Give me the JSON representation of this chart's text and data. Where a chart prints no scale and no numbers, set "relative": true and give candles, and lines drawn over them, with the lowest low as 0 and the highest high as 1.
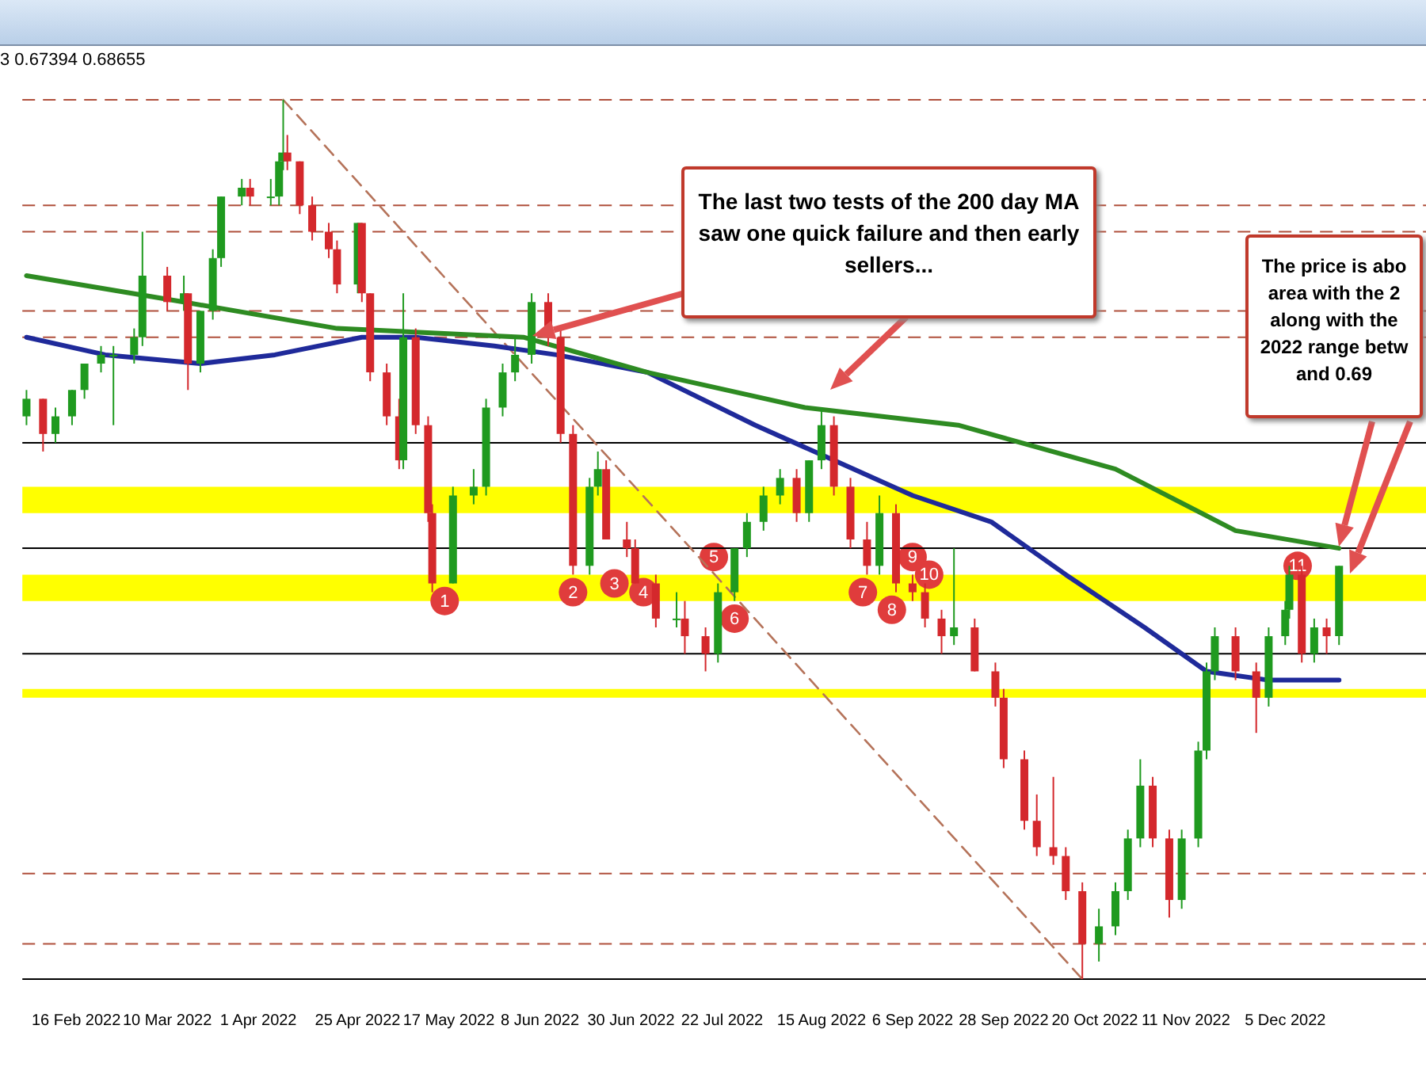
{
  "chart_data": {
    "type": "candlestick",
    "relative": true,
    "legend": false,
    "grid": false,
    "marker": "none",
    "tick_labels": "x",
    "x": [
      "2022-02-04",
      "2022-02-08",
      "2022-02-11",
      "2022-02-15",
      "2022-02-18",
      "2022-02-22",
      "2022-02-25",
      "2022-03-02",
      "2022-03-04",
      "2022-03-10",
      "2022-03-14",
      "2022-03-15",
      "2022-03-18",
      "2022-03-21",
      "2022-03-23",
      "2022-03-28",
      "2022-03-30",
      "2022-04-04",
      "2022-04-06",
      "2022-04-07",
      "2022-04-08",
      "2022-04-11",
      "2022-04-14",
      "2022-04-18",
      "2022-04-20",
      "2022-04-25",
      "2022-04-26",
      "2022-04-28",
      "2022-05-02",
      "2022-05-05",
      "2022-05-06",
      "2022-05-09",
      "2022-05-12",
      "2022-05-13",
      "2022-05-18",
      "2022-05-23",
      "2022-05-26",
      "2022-05-30",
      "2022-06-02",
      "2022-06-06",
      "2022-06-10",
      "2022-06-13",
      "2022-06-16",
      "2022-06-20",
      "2022-06-22",
      "2022-06-24",
      "2022-06-29",
      "2022-07-01",
      "2022-07-06",
      "2022-07-11",
      "2022-07-13",
      "2022-07-18",
      "2022-07-21",
      "2022-07-25",
      "2022-07-28",
      "2022-08-01",
      "2022-08-05",
      "2022-08-09",
      "2022-08-12",
      "2022-08-15",
      "2022-08-18",
      "2022-08-22",
      "2022-08-26",
      "2022-08-29",
      "2022-09-02",
      "2022-09-06",
      "2022-09-09",
      "2022-09-13",
      "2022-09-16",
      "2022-09-21",
      "2022-09-26",
      "2022-09-28",
      "2022-10-03",
      "2022-10-06",
      "2022-10-10",
      "2022-10-13",
      "2022-10-17",
      "2022-10-21",
      "2022-10-25",
      "2022-10-28",
      "2022-10-31",
      "2022-11-03",
      "2022-11-07",
      "2022-11-10",
      "2022-11-14",
      "2022-11-16",
      "2022-11-18",
      "2022-11-23",
      "2022-11-28",
      "2022-12-01",
      "2022-12-05",
      "2022-12-06",
      "2022-12-09",
      "2022-12-12",
      "2022-12-15",
      "2022-12-18"
    ],
    "ohlc": [
      [
        0.64,
        0.67,
        0.63,
        0.66
      ],
      [
        0.66,
        0.66,
        0.6,
        0.62
      ],
      [
        0.62,
        0.65,
        0.61,
        0.64
      ],
      [
        0.64,
        0.67,
        0.63,
        0.67
      ],
      [
        0.67,
        0.7,
        0.66,
        0.7
      ],
      [
        0.7,
        0.72,
        0.69,
        0.71
      ],
      [
        0.71,
        0.72,
        0.63,
        0.71
      ],
      [
        0.71,
        0.74,
        0.7,
        0.73
      ],
      [
        0.73,
        0.85,
        0.72,
        0.8
      ],
      [
        0.8,
        0.81,
        0.76,
        0.77
      ],
      [
        0.77,
        0.8,
        0.76,
        0.78
      ],
      [
        0.78,
        0.78,
        0.67,
        0.7
      ],
      [
        0.7,
        0.76,
        0.69,
        0.76
      ],
      [
        0.76,
        0.83,
        0.75,
        0.82
      ],
      [
        0.82,
        0.89,
        0.81,
        0.89
      ],
      [
        0.89,
        0.91,
        0.88,
        0.9
      ],
      [
        0.9,
        0.91,
        0.88,
        0.89
      ],
      [
        0.89,
        0.91,
        0.88,
        0.89
      ],
      [
        0.89,
        0.94,
        0.88,
        0.93
      ],
      [
        0.93,
        1,
        0.92,
        0.94
      ],
      [
        0.94,
        0.96,
        0.92,
        0.93
      ],
      [
        0.93,
        0.93,
        0.87,
        0.88
      ],
      [
        0.88,
        0.89,
        0.84,
        0.85
      ],
      [
        0.85,
        0.86,
        0.82,
        0.83
      ],
      [
        0.83,
        0.84,
        0.78,
        0.79
      ],
      [
        0.79,
        0.86,
        0.78,
        0.86
      ],
      [
        0.86,
        0.86,
        0.77,
        0.78
      ],
      [
        0.78,
        0.78,
        0.68,
        0.69
      ],
      [
        0.69,
        0.7,
        0.63,
        0.64
      ],
      [
        0.64,
        0.66,
        0.58,
        0.59
      ],
      [
        0.59,
        0.78,
        0.58,
        0.73
      ],
      [
        0.73,
        0.74,
        0.62,
        0.63
      ],
      [
        0.63,
        0.64,
        0.52,
        0.53
      ],
      [
        0.53,
        0.54,
        0.44,
        0.45
      ],
      [
        0.45,
        0.56,
        0.45,
        0.55
      ],
      [
        0.55,
        0.58,
        0.54,
        0.56
      ],
      [
        0.56,
        0.66,
        0.55,
        0.65
      ],
      [
        0.65,
        0.7,
        0.64,
        0.69
      ],
      [
        0.69,
        0.73,
        0.68,
        0.71
      ],
      [
        0.71,
        0.78,
        0.7,
        0.77
      ],
      [
        0.77,
        0.78,
        0.72,
        0.73
      ],
      [
        0.73,
        0.74,
        0.61,
        0.62
      ],
      [
        0.62,
        0.63,
        0.46,
        0.47
      ],
      [
        0.47,
        0.57,
        0.46,
        0.56
      ],
      [
        0.56,
        0.6,
        0.55,
        0.58
      ],
      [
        0.58,
        0.59,
        0.5,
        0.5
      ],
      [
        0.5,
        0.52,
        0.48,
        0.49
      ],
      [
        0.49,
        0.5,
        0.45,
        0.45
      ],
      [
        0.45,
        0.46,
        0.4,
        0.41
      ],
      [
        0.41,
        0.44,
        0.4,
        0.41
      ],
      [
        0.41,
        0.43,
        0.37,
        0.39
      ],
      [
        0.39,
        0.4,
        0.35,
        0.37
      ],
      [
        0.37,
        0.45,
        0.36,
        0.44
      ],
      [
        0.44,
        0.49,
        0.43,
        0.49
      ],
      [
        0.49,
        0.53,
        0.48,
        0.52
      ],
      [
        0.52,
        0.56,
        0.51,
        0.55
      ],
      [
        0.55,
        0.58,
        0.54,
        0.57
      ],
      [
        0.57,
        0.58,
        0.52,
        0.53
      ],
      [
        0.53,
        0.59,
        0.52,
        0.59
      ],
      [
        0.59,
        0.65,
        0.58,
        0.63
      ],
      [
        0.63,
        0.64,
        0.55,
        0.56
      ],
      [
        0.56,
        0.57,
        0.49,
        0.5
      ],
      [
        0.5,
        0.52,
        0.46,
        0.47
      ],
      [
        0.47,
        0.55,
        0.46,
        0.53
      ],
      [
        0.53,
        0.54,
        0.44,
        0.45
      ],
      [
        0.45,
        0.46,
        0.43,
        0.44
      ],
      [
        0.44,
        0.45,
        0.4,
        0.41
      ],
      [
        0.41,
        0.42,
        0.37,
        0.39
      ],
      [
        0.39,
        0.49,
        0.38,
        0.4
      ],
      [
        0.4,
        0.41,
        0.35,
        0.35
      ],
      [
        0.35,
        0.36,
        0.31,
        0.32
      ],
      [
        0.32,
        0.33,
        0.24,
        0.25
      ],
      [
        0.25,
        0.26,
        0.17,
        0.18
      ],
      [
        0.18,
        0.21,
        0.14,
        0.15
      ],
      [
        0.15,
        0.23,
        0.13,
        0.14
      ],
      [
        0.14,
        0.15,
        0.09,
        0.1
      ],
      [
        0.1,
        0.11,
        0,
        0.04
      ],
      [
        0.04,
        0.08,
        0.02,
        0.06
      ],
      [
        0.06,
        0.11,
        0.05,
        0.1
      ],
      [
        0.1,
        0.17,
        0.09,
        0.16
      ],
      [
        0.16,
        0.25,
        0.15,
        0.22
      ],
      [
        0.22,
        0.23,
        0.15,
        0.16
      ],
      [
        0.16,
        0.17,
        0.07,
        0.09
      ],
      [
        0.09,
        0.17,
        0.08,
        0.16
      ],
      [
        0.16,
        0.27,
        0.15,
        0.26
      ],
      [
        0.26,
        0.36,
        0.25,
        0.35
      ],
      [
        0.35,
        0.4,
        0.34,
        0.39
      ],
      [
        0.39,
        0.4,
        0.34,
        0.35
      ],
      [
        0.35,
        0.36,
        0.28,
        0.32
      ],
      [
        0.32,
        0.4,
        0.31,
        0.39
      ],
      [
        0.39,
        0.43,
        0.38,
        0.42
      ],
      [
        0.42,
        0.47,
        0.41,
        0.46
      ],
      [
        0.46,
        0.47,
        0.36,
        0.37
      ],
      [
        0.37,
        0.41,
        0.36,
        0.4
      ],
      [
        0.4,
        0.41,
        0.37,
        0.39
      ],
      [
        0.39,
        0.47,
        0.38,
        0.47
      ]
    ],
    "series": [
      {
        "type": "line",
        "color": "#2e8b22",
        "x": [
          "2022-02-04",
          "2022-03-14",
          "2022-04-20",
          "2022-06-04",
          "2022-07-04",
          "2022-08-11",
          "2022-09-17",
          "2022-10-25",
          "2022-11-23",
          "2022-12-18"
        ],
        "values": [
          0.8,
          0.77,
          0.74,
          0.73,
          0.69,
          0.65,
          0.63,
          0.58,
          0.51,
          0.49
        ]
      },
      {
        "type": "line",
        "color": "#1f2a9a",
        "x": [
          "2022-02-04",
          "2022-02-23",
          "2022-03-18",
          "2022-04-05",
          "2022-04-26",
          "2022-05-09",
          "2022-05-28",
          "2022-06-12",
          "2022-07-04",
          "2022-07-30",
          "2022-08-18",
          "2022-09-06",
          "2022-09-25",
          "2022-10-13",
          "2022-11-01",
          "2022-11-16",
          "2022-12-01",
          "2022-12-18"
        ],
        "values": [
          0.73,
          0.71,
          0.7,
          0.71,
          0.73,
          0.73,
          0.72,
          0.71,
          0.69,
          0.63,
          0.59,
          0.55,
          0.52,
          0.46,
          0.4,
          0.35,
          0.34,
          0.34
        ]
      },
      {
        "type": "line",
        "color": "#b5735a",
        "line_style": "dashed",
        "x": [
          "2022-04-07",
          "2022-10-17"
        ],
        "values": [
          1,
          0
        ]
      }
    ],
    "xlim": [
      "2022-02-03",
      "2023-01-08"
    ],
    "xticks": [
      {
        "value": "2022-02-16",
        "label": "16 Feb 2022"
      },
      {
        "value": "2022-03-10",
        "label": "10 Mar 2022"
      },
      {
        "value": "2022-04-01",
        "label": "1 Apr 2022"
      },
      {
        "value": "2022-04-25",
        "label": "25 Apr 2022"
      },
      {
        "value": "2022-05-17",
        "label": "17 May 2022"
      },
      {
        "value": "2022-06-08",
        "label": "8 Jun 2022"
      },
      {
        "value": "2022-06-30",
        "label": "30 Jun 2022"
      },
      {
        "value": "2022-07-22",
        "label": "22 Jul 2022"
      },
      {
        "value": "2022-08-15",
        "label": "15 Aug 2022"
      },
      {
        "value": "2022-09-06",
        "label": "6 Sep 2022"
      },
      {
        "value": "2022-09-28",
        "label": "28 Sep 2022"
      },
      {
        "value": "2022-10-20",
        "label": "20 Oct 2022"
      },
      {
        "value": "2022-11-11",
        "label": "11 Nov 2022"
      },
      {
        "value": "2022-12-05",
        "label": "5 Dec 2022"
      }
    ],
    "bands": [
      {
        "axis": "y",
        "from": 0.53,
        "to": 0.56,
        "color": "#ffff00"
      },
      {
        "axis": "y",
        "from": 0.43,
        "to": 0.46,
        "color": "#ffff00"
      },
      {
        "axis": "y",
        "from": 0.32,
        "to": 0.33,
        "color": "#ffff00"
      }
    ],
    "ref_lines": [
      {
        "axis": "y",
        "value": 1,
        "color": "#b0503c",
        "line_style": "dashed"
      },
      {
        "axis": "y",
        "value": 0.88,
        "color": "#b0503c",
        "line_style": "dashed"
      },
      {
        "axis": "y",
        "value": 0.85,
        "color": "#b0503c",
        "line_style": "dashed"
      },
      {
        "axis": "y",
        "value": 0.76,
        "color": "#b0503c",
        "line_style": "dashed"
      },
      {
        "axis": "y",
        "value": 0.73,
        "color": "#b0503c",
        "line_style": "dashed"
      },
      {
        "axis": "y",
        "value": 0.12,
        "color": "#b0503c",
        "line_style": "dashed"
      },
      {
        "axis": "y",
        "value": 0.04,
        "color": "#b0503c",
        "line_style": "dashed"
      },
      {
        "axis": "y",
        "value": 0.61,
        "color": "#000000",
        "line_style": "solid"
      },
      {
        "axis": "y",
        "value": 0.49,
        "color": "#000000",
        "line_style": "solid"
      },
      {
        "axis": "y",
        "value": 0.37,
        "color": "#000000",
        "line_style": "solid"
      },
      {
        "axis": "y",
        "value": 0,
        "color": "#000000",
        "line_style": "solid"
      }
    ],
    "annotations": [
      "3 0.67394 0.68655",
      "The last two tests of the 200 day MA saw one quick failure and then early sellers...",
      "The price is abo\narea with the 2\nalong with the\n2022 range betw\nand 0.69",
      {
        "text": "1",
        "x": "2022-05-16",
        "y": 0.43
      },
      {
        "text": "2",
        "x": "2022-06-16",
        "y": 0.44
      },
      {
        "text": "3",
        "x": "2022-06-26",
        "y": 0.45
      },
      {
        "text": "4",
        "x": "2022-07-03",
        "y": 0.44
      },
      {
        "text": "5",
        "x": "2022-07-20",
        "y": 0.48
      },
      {
        "text": "6",
        "x": "2022-07-25",
        "y": 0.41
      },
      {
        "text": "7",
        "x": "2022-08-25",
        "y": 0.44
      },
      {
        "text": "8",
        "x": "2022-09-01",
        "y": 0.42
      },
      {
        "text": "9",
        "x": "2022-09-06",
        "y": 0.48
      },
      {
        "text": "10",
        "x": "2022-09-10",
        "y": 0.46
      },
      {
        "text": "11",
        "x": "2022-12-08",
        "y": 0.47
      }
    ]
  }
}
